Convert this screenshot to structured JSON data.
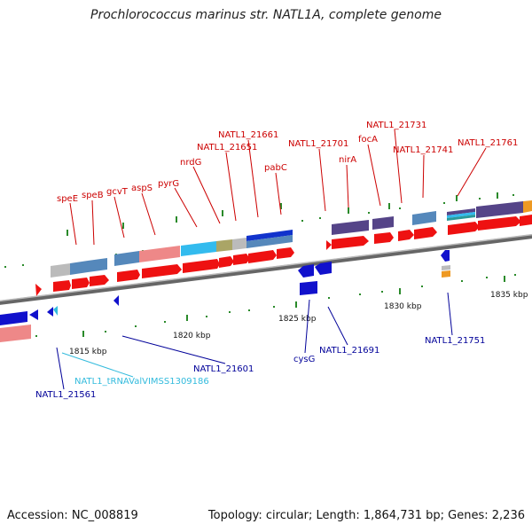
{
  "title": "Prochlorococcus marinus str. NATL1A, complete genome",
  "footer": {
    "accession": "Accession: NC_008819",
    "summary": "Topology: circular; Length: 1,864,731 bp; Genes: 2,236"
  },
  "colors": {
    "forward_label": "#cc0000",
    "reverse_label": "#000099",
    "trna_label": "#33bbdd",
    "forward_gene": "#ee1111",
    "reverse_gene": "#1111cc",
    "backbone": "#888888"
  },
  "ticks": {
    "t1815": "1815 kbp",
    "t1820": "1820 kbp",
    "t1825": "1825 kbp",
    "t1830": "1830 kbp",
    "t1835": "1835 kbp"
  },
  "forward_labels": {
    "speE": "speE",
    "speB": "speB",
    "gcvT": "gcvT",
    "aspS": "aspS",
    "pyrG": "pyrG",
    "nrdG": "nrdG",
    "n21651": "NATL1_21651",
    "n21661": "NATL1_21661",
    "pabC": "pabC",
    "n21701": "NATL1_21701",
    "nirA": "nirA",
    "focA": "focA",
    "n21731": "NATL1_21731",
    "n21741": "NATL1_21741",
    "n21761": "NATL1_21761"
  },
  "reverse_labels": {
    "n21561": "NATL1_21561",
    "trna": "NATL1_tRNAValVIMSS1309186",
    "n21601": "NATL1_21601",
    "cysG": "cysG",
    "n21691": "NATL1_21691",
    "n21751": "NATL1_21751"
  }
}
